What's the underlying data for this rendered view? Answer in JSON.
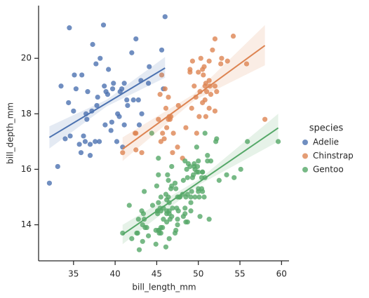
{
  "chart_data": {
    "type": "scatter",
    "xlabel": "bill_length_mm",
    "ylabel": "bill_depth_mm",
    "xlim": [
      30.8,
      60.9
    ],
    "ylim": [
      12.7,
      21.9
    ],
    "xticks": [
      35,
      40,
      45,
      50,
      55,
      60
    ],
    "yticks": [
      14,
      16,
      18,
      20
    ],
    "legend_title": "species",
    "legend": "right",
    "series": [
      {
        "name": "Adelie",
        "color": "#4c72b0",
        "x": [
          32.1,
          34.5,
          33.5,
          33.1,
          34,
          34.6,
          35,
          35.1,
          36,
          36.2,
          36.7,
          37,
          37.3,
          37.6,
          37.8,
          38.1,
          38.6,
          38.9,
          39.1,
          39.5,
          39.2,
          40.3,
          40.6,
          40.9,
          41.1,
          41.4,
          42,
          42.2,
          42.5,
          42.9,
          43.2,
          44.1,
          45.8,
          46,
          36.4,
          35.9,
          37.7,
          38.2,
          39.7,
          40.2,
          41.1,
          34.4,
          36.5,
          37.9,
          39.6,
          40.5,
          35.7,
          37.2,
          38.8,
          41.5,
          36.6,
          39.8,
          42.8,
          45.6,
          44,
          43.1,
          38.7,
          35.3,
          37,
          40.8
        ],
        "y": [
          15.5,
          21.1,
          19,
          16.1,
          17.1,
          17.2,
          18.1,
          19.4,
          19.4,
          17.2,
          18.8,
          16.9,
          20.5,
          17,
          18.3,
          17,
          21.2,
          18.8,
          18.7,
          17.4,
          19.6,
          18,
          18.8,
          16.8,
          17.6,
          18.5,
          20.2,
          18.5,
          20.7,
          17.6,
          18,
          19.7,
          18.9,
          21.5,
          17,
          16.6,
          19.8,
          20,
          18.9,
          17,
          19.1,
          18.4,
          18,
          18.6,
          17.7,
          17.9,
          16.9,
          18.1,
          17.6,
          18.3,
          17.8,
          19.1,
          18.5,
          20.3,
          19.1,
          19.2,
          19,
          18.9,
          16.5,
          18.9
        ],
        "fit": {
          "x": [
            32.1,
            39.0,
            46.0
          ],
          "y": [
            17.15,
            18.39,
            19.65
          ],
          "lower": [
            16.75,
            18.27,
            19.3
          ],
          "upper": [
            17.55,
            18.51,
            20.05
          ]
        }
      },
      {
        "name": "Chinstrap",
        "color": "#dd8452",
        "x": [
          46.5,
          50,
          51.3,
          45.4,
          52.7,
          45.2,
          46.1,
          51.3,
          46,
          51.3,
          46.6,
          51.7,
          47,
          52,
          50.5,
          50.3,
          58,
          46.4,
          49.2,
          42.4,
          48.5,
          43.2,
          50.6,
          46.7,
          52,
          50.5,
          49.5,
          46.4,
          52.8,
          40.9,
          54.2,
          42.5,
          51,
          49.7,
          47.5,
          47.6,
          52,
          46.9,
          53.5,
          49,
          46.2,
          50.9,
          45.5,
          50.9,
          50.8,
          50.1,
          49,
          51.5,
          49.8,
          48.1,
          51.4,
          45.7,
          50.7,
          42.5,
          52.2,
          45.6,
          49.3,
          50.2,
          45.9,
          50.8,
          55.8
        ],
        "y": [
          17.9,
          19.5,
          19.2,
          18.7,
          19.8,
          17.8,
          18.2,
          18.2,
          18.9,
          19.9,
          17.8,
          20.3,
          17.3,
          18.1,
          19.6,
          20,
          17.8,
          18.6,
          18.2,
          17.3,
          17.5,
          16.6,
          19.4,
          17.9,
          19,
          18.4,
          19,
          17.8,
          20,
          16.6,
          20.8,
          16.7,
          18.8,
          18.6,
          16.8,
          18.3,
          20.7,
          16.6,
          19.9,
          19.5,
          17.5,
          19.1,
          17,
          17.9,
          18.5,
          17.9,
          19.6,
          18.7,
          17.3,
          16.4,
          19,
          17.3,
          19.7,
          17.3,
          18.8,
          19.4,
          19.9,
          18.8,
          17.1,
          19,
          19.8
        ],
        "fit": {
          "x": [
            40.9,
            49.5,
            58.0
          ],
          "y": [
            16.73,
            18.6,
            20.46
          ],
          "lower": [
            16.3,
            18.48,
            19.75
          ],
          "upper": [
            17.15,
            18.72,
            21.2
          ]
        }
      },
      {
        "name": "Gentoo",
        "color": "#55a868",
        "x": [
          46.1,
          50,
          48.7,
          50,
          47.6,
          46.5,
          45.4,
          46.7,
          43.3,
          46.8,
          40.9,
          49,
          45.5,
          48.4,
          45.8,
          49.3,
          42,
          49.2,
          46.2,
          48.7,
          50.2,
          45.1,
          46.5,
          46.3,
          42.9,
          46.1,
          47.8,
          48.2,
          50,
          47.3,
          42.8,
          45.1,
          59.6,
          49.1,
          48.4,
          42.6,
          44.4,
          44,
          48.7,
          42.7,
          49.6,
          45.3,
          49.6,
          50.5,
          43.6,
          45.5,
          50.5,
          44.9,
          45.2,
          46.6,
          48.5,
          45.1,
          50.1,
          46.5,
          45,
          43.8,
          45.5,
          43.2,
          50.4,
          45.3,
          46.2,
          45.7,
          54.3,
          45.8,
          49.8,
          46.2,
          49.5,
          43.5,
          50.7,
          47.7,
          46.4,
          48.2,
          46.5,
          46.4,
          48.6,
          47.5,
          51.1,
          45.2,
          45.2,
          49.1,
          52.5,
          47.4,
          50,
          44.9,
          50.8,
          43.4,
          51.3,
          47.5,
          52.1,
          47.5,
          52.2,
          45.5,
          49.5,
          44.5,
          50.8,
          49.4,
          46.9,
          48.4,
          51.1,
          48.5,
          55.9,
          47.2,
          49.1,
          47.3,
          46.8,
          41.7,
          53.4,
          43.3,
          48.1,
          50.5,
          49.8,
          43.5,
          51.5,
          46.2,
          55.1,
          48.8,
          47.2,
          46.8,
          50.4,
          45.2,
          49.9
        ],
        "y": [
          13.2,
          16.3,
          14.1,
          15.2,
          14.5,
          13.5,
          14.6,
          15.3,
          13.4,
          15.4,
          13.7,
          16.1,
          13.7,
          14.6,
          14.6,
          15.7,
          13.5,
          15.2,
          14.5,
          15.1,
          14.3,
          14.5,
          14.5,
          15.8,
          13.1,
          15.1,
          15,
          14.3,
          15.3,
          15.3,
          14.2,
          14.5,
          17,
          14.8,
          16.3,
          13.7,
          17.3,
          13.6,
          15.7,
          13.7,
          16,
          13.7,
          15,
          15.9,
          13.9,
          13.9,
          15.9,
          13.3,
          15.8,
          14.2,
          14.1,
          14.4,
          15,
          14.4,
          15.4,
          13.9,
          15,
          14.5,
          15.3,
          13.8,
          14.9,
          13.9,
          15.7,
          14.2,
          16.8,
          14.4,
          16.2,
          14.2,
          15,
          15,
          15.6,
          15.6,
          14.8,
          15,
          16,
          14.2,
          16.3,
          13.8,
          16.4,
          14.5,
          15.6,
          14.6,
          15.9,
          13.8,
          17.3,
          14.4,
          14.2,
          14,
          17,
          15,
          17.1,
          14.5,
          16.1,
          14.7,
          15.7,
          15.8,
          14.6,
          14.4,
          16.5,
          15,
          17,
          15.5,
          15,
          13.8,
          16.1,
          14.7,
          15.8,
          14,
          15.1,
          15.2,
          15.9,
          15.2,
          16.3,
          14.1,
          16,
          16.2,
          13.7,
          14.3,
          15.7,
          14.8,
          16.1
        ],
        "fit": {
          "x": [
            40.9,
            50.2,
            59.6
          ],
          "y": [
            13.65,
            15.56,
            17.49
          ],
          "lower": [
            13.3,
            15.46,
            17.0
          ],
          "upper": [
            14.0,
            15.66,
            18.0
          ]
        }
      }
    ]
  }
}
